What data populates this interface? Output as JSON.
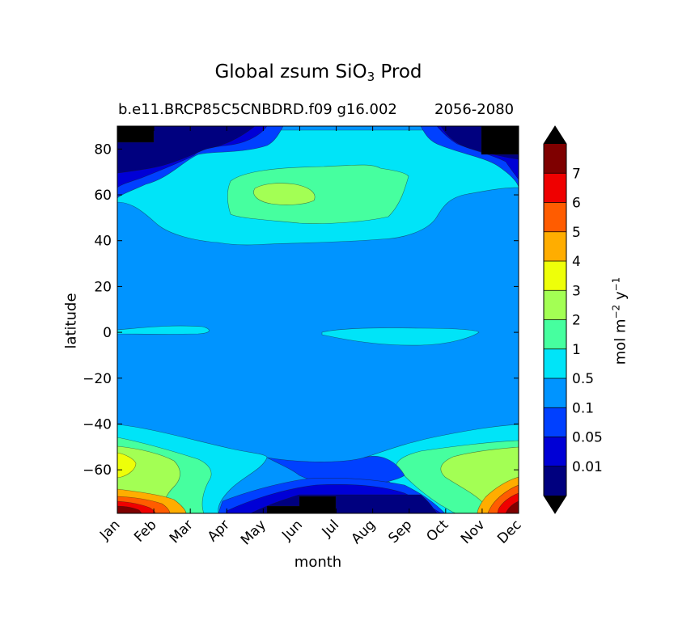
{
  "figure": {
    "title_main": "Global zsum SiO",
    "title_sub": "3",
    "title_tail": " Prod",
    "subtitle_left": "b.e11.BRCP85C5CNBDRD.f09 g16.002",
    "subtitle_right": "2056-2080"
  },
  "chart_data": {
    "type": "heatmap",
    "subtype": "filled-contour",
    "xlabel": "month",
    "ylabel": "latitude",
    "x_categories": [
      "Jan",
      "Feb",
      "Mar",
      "Apr",
      "May",
      "Jun",
      "Jul",
      "Aug",
      "Sep",
      "Oct",
      "Nov",
      "Dec"
    ],
    "xlim": [
      0,
      11
    ],
    "ylim": [
      -79,
      90
    ],
    "y_ticks": [
      -60,
      -40,
      -20,
      0,
      20,
      40,
      60,
      80
    ],
    "grid": false,
    "colorbar": {
      "label_main": "mol m",
      "label_exp1": "−2",
      "label_mid": " y",
      "label_exp2": "−1",
      "levels": [
        0.01,
        0.05,
        0.1,
        0.5,
        1,
        2,
        3,
        4,
        5,
        6,
        7
      ],
      "level_labels": [
        "0.01",
        "0.05",
        "0.1",
        "0.5",
        "1",
        "2",
        "3",
        "4",
        "5",
        "6",
        "7"
      ],
      "colors": [
        "#00007f",
        "#0000d6",
        "#0040ff",
        "#0094ff",
        "#00e4f8",
        "#46ff9f",
        "#a3ff54",
        "#eeff09",
        "#ffad00",
        "#ff5c00",
        "#ef0000",
        "#7f0000"
      ],
      "extend": "both"
    },
    "regions": [
      {
        "level": 4,
        "name": "equatorial-band-left",
        "value_range": "0.5-1"
      },
      {
        "level": 4,
        "name": "equatorial-band-right",
        "value_range": "0.5-1"
      },
      {
        "level": 4,
        "name": "northern-high-latitudes",
        "value_range": "0.5-1"
      },
      {
        "level": 5,
        "name": "northern-summer-bloom",
        "value_range": "1-2"
      },
      {
        "level": 6,
        "name": "northern-summer-peak",
        "value_range": "2-3"
      },
      {
        "level": 2,
        "name": "arctic-winter",
        "value_range": "0.05-0.1"
      },
      {
        "level": 0,
        "name": "arctic-winter-core",
        "value_range": "<0.01"
      },
      {
        "level": 4,
        "name": "southern-ocean-band",
        "value_range": "0.5-1"
      },
      {
        "level": 11,
        "name": "antarctic-summer-peak",
        "value_range": ">7"
      },
      {
        "level": 1,
        "name": "antarctic-winter",
        "value_range": "0.01-0.05"
      }
    ]
  }
}
